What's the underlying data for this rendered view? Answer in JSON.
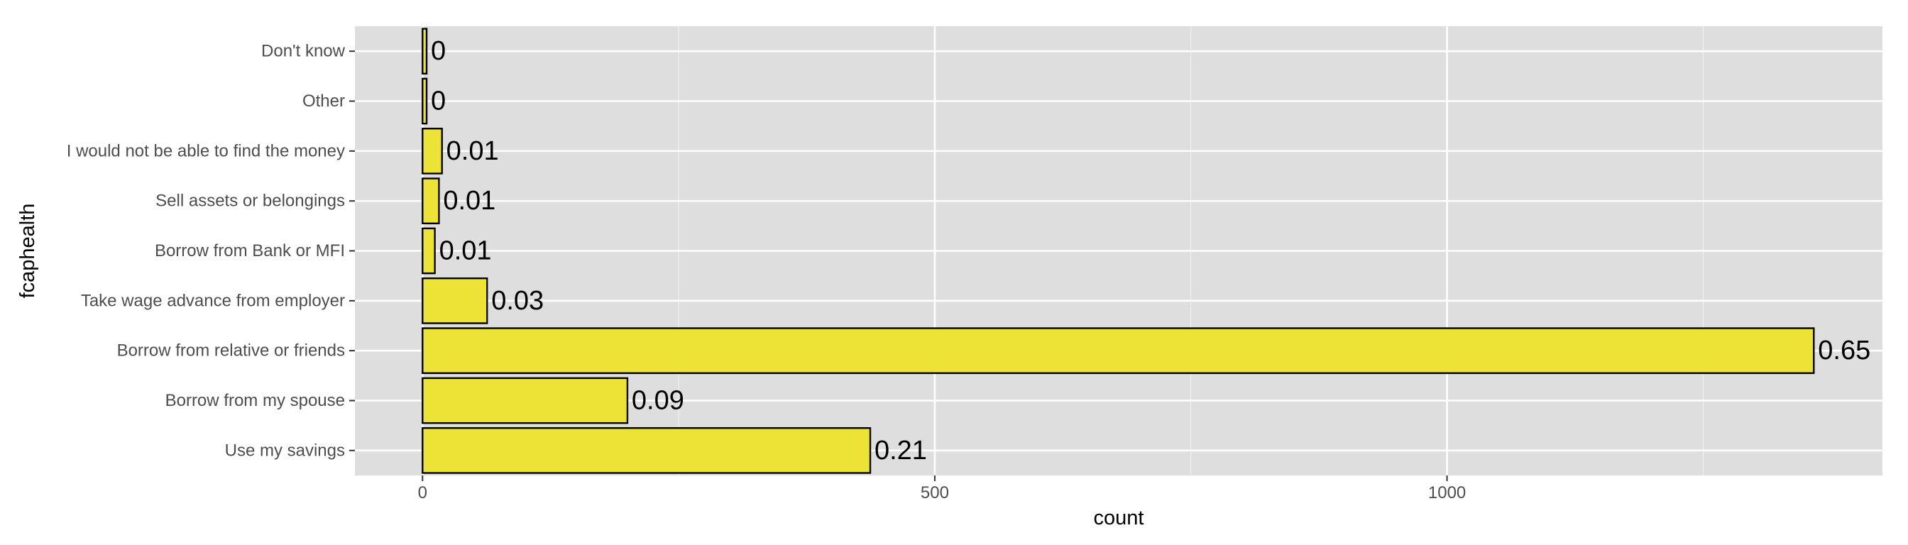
{
  "chart_data": {
    "type": "bar",
    "orientation": "horizontal",
    "xlabel": "count",
    "ylabel": "fcaphealth",
    "categories": [
      "Use my savings",
      "Borrow from my spouse",
      "Borrow from relative or friends",
      "Take wage advance from employer",
      "Borrow from Bank or MFI",
      "Sell assets or belongings",
      "I would not be able to find the money",
      "Other",
      "Don't know"
    ],
    "values": [
      437,
      200,
      1358,
      63,
      12,
      16,
      19,
      4,
      4
    ],
    "data_labels": [
      "0.21",
      "0.09",
      "0.65",
      "0.03",
      "0.01",
      "0.01",
      "0.01",
      "0",
      "0"
    ],
    "x_ticks": [
      0,
      500,
      1000
    ],
    "xlim": [
      -66,
      1425
    ],
    "grid": true,
    "bar_color": "#EDE236",
    "bar_outline": "#000000",
    "panel_background": "#DEDEDE",
    "grid_color": "#FFFFFF"
  }
}
